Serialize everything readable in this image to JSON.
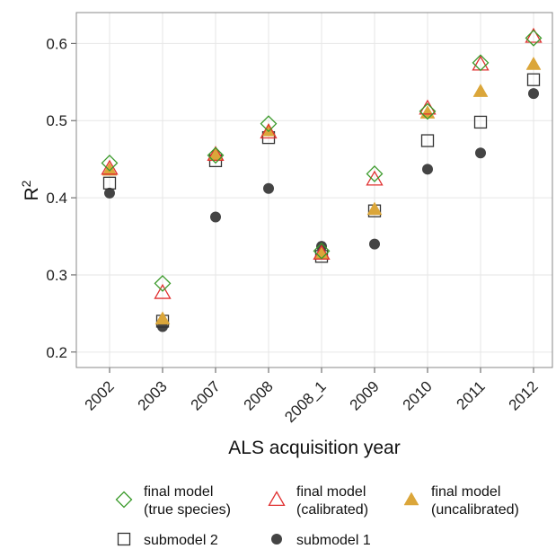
{
  "chart_data": {
    "type": "scatter",
    "xlabel": "ALS acquisition year",
    "ylabel_base": "R",
    "ylabel_sup": "2",
    "categories": [
      "2002",
      "2003",
      "2007",
      "2008",
      "2008_1",
      "2009",
      "2010",
      "2011",
      "2012"
    ],
    "yticks": [
      "0.2",
      "0.3",
      "0.4",
      "0.5",
      "0.6"
    ],
    "ylim": [
      0.18,
      0.64
    ],
    "grid": true,
    "legend_position": "bottom",
    "series": [
      {
        "key": "true_species",
        "legend_lines": [
          "final model",
          "(true species)"
        ],
        "marker": "diamond-open",
        "color": "#3a9a2a",
        "values": [
          0.445,
          0.289,
          0.455,
          0.496,
          0.331,
          0.431,
          0.512,
          0.575,
          0.607
        ]
      },
      {
        "key": "calibrated",
        "legend_lines": [
          "final model",
          "(calibrated)"
        ],
        "marker": "triangle-open",
        "color": "#e03030",
        "values": [
          0.438,
          0.277,
          0.456,
          0.485,
          0.328,
          0.424,
          0.516,
          0.573,
          0.609
        ]
      },
      {
        "key": "uncalibrated",
        "legend_lines": [
          "final model",
          "(uncalibrated)"
        ],
        "marker": "triangle-filled",
        "color": "#dba63a",
        "values": [
          0.436,
          0.243,
          0.455,
          0.487,
          0.327,
          0.385,
          0.51,
          0.538,
          0.573
        ]
      },
      {
        "key": "submodel2",
        "legend_lines": [
          "submodel 2"
        ],
        "marker": "square-open",
        "color": "#333333",
        "values": [
          0.419,
          0.24,
          0.448,
          0.478,
          0.324,
          0.383,
          0.474,
          0.498,
          0.553
        ]
      },
      {
        "key": "submodel1",
        "legend_lines": [
          "submodel 1"
        ],
        "marker": "circle-filled",
        "color": "#444444",
        "values": [
          0.406,
          0.233,
          0.375,
          0.412,
          0.337,
          0.34,
          0.437,
          0.458,
          0.535
        ]
      }
    ]
  }
}
